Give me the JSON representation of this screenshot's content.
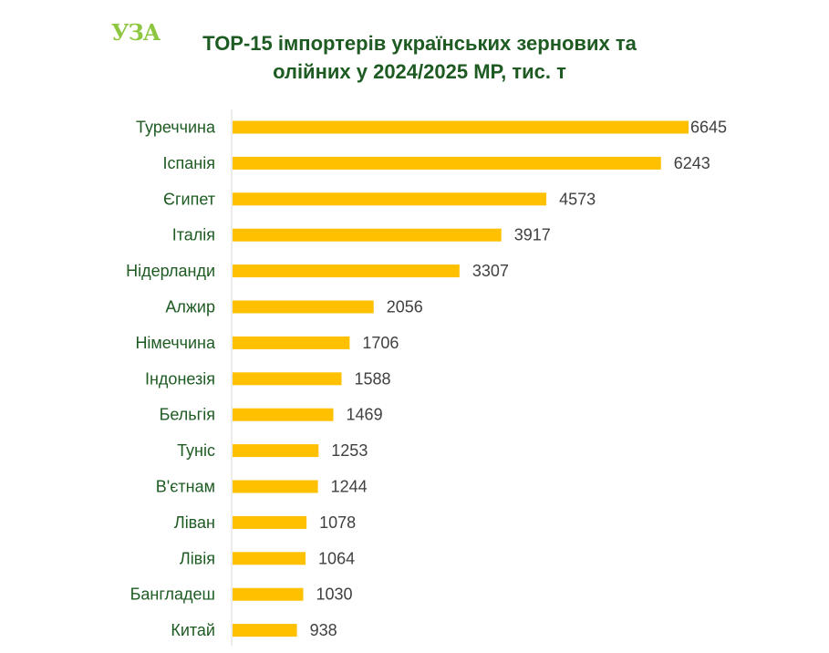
{
  "logo": {
    "text": "УЗА",
    "color": "#8dc63f"
  },
  "chart_data": {
    "type": "bar",
    "orientation": "horizontal",
    "title_lines": [
      "TOP-15 імпортерів українських зернових та",
      "олійних у 2024/2025 МР, тис. т"
    ],
    "categories": [
      "Туреччина",
      "Іспанія",
      "Єгипет",
      "Італія",
      "Нідерланди",
      "Алжир",
      "Німеччина",
      "Індонезія",
      "Бельгія",
      "Туніс",
      "В'єтнам",
      "Ліван",
      "Лівія",
      "Бангладеш",
      "Китай"
    ],
    "values": [
      6645,
      6243,
      4573,
      3917,
      3307,
      2056,
      1706,
      1588,
      1469,
      1253,
      1244,
      1078,
      1064,
      1030,
      938
    ],
    "xlabel": "",
    "ylabel": "",
    "xlim": [
      0,
      6645
    ],
    "grid": false,
    "bar_color": "#ffc000",
    "label_color": "#1e5b22",
    "value_color": "#404040"
  }
}
